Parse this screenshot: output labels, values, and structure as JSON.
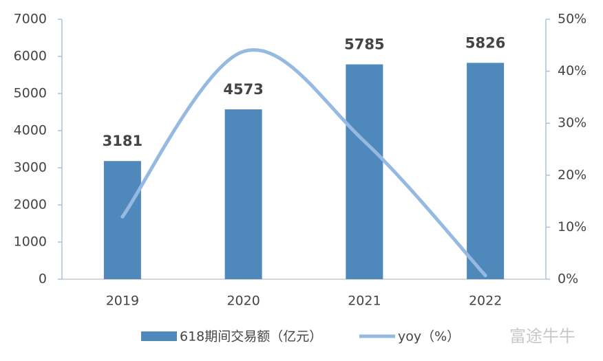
{
  "chart_data": {
    "type": "bar-line",
    "categories": [
      "2019",
      "2020",
      "2021",
      "2022"
    ],
    "series": [
      {
        "name": "618期间交易额（亿元）",
        "type": "bar",
        "color": "#4f88bb",
        "values": [
          3181,
          4573,
          5785,
          5826
        ]
      },
      {
        "name": "yoy（%）",
        "type": "line",
        "axis": "y2",
        "color": "#95b9e1",
        "values": [
          12,
          43.8,
          26.5,
          0.7
        ]
      }
    ],
    "ylim": [
      0,
      7000
    ],
    "yticks": [
      0,
      1000,
      2000,
      3000,
      4000,
      5000,
      6000,
      7000
    ],
    "y2lim": [
      0,
      50
    ],
    "y2ticks": [
      {
        "value": 0,
        "label": "0%"
      },
      {
        "value": 10,
        "label": "10%"
      },
      {
        "value": 20,
        "label": "20%"
      },
      {
        "value": 30,
        "label": "30%"
      },
      {
        "value": 40,
        "label": "40%"
      },
      {
        "value": 50,
        "label": "50%"
      }
    ],
    "legend": "bottom"
  },
  "watermark": "富途牛牛"
}
